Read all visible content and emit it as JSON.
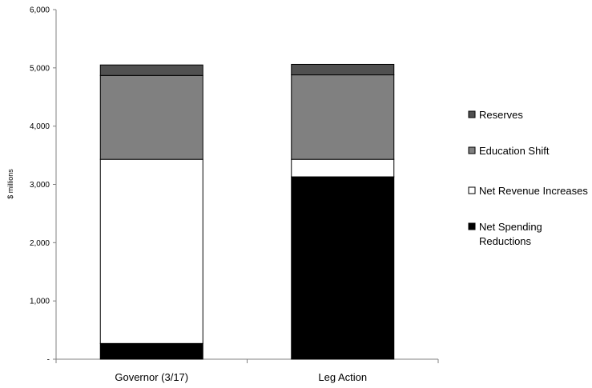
{
  "chart_data": {
    "type": "bar",
    "stacked": true,
    "categories": [
      "Governor (3/17)",
      "Leg Action"
    ],
    "series": [
      {
        "name": "Net Spending Reductions",
        "values": [
          270,
          3130
        ],
        "color": "#000000"
      },
      {
        "name": "Net Revenue Increases",
        "values": [
          3160,
          300
        ],
        "color": "#ffffff"
      },
      {
        "name": "Education Shift",
        "values": [
          1440,
          1450
        ],
        "color": "#808080"
      },
      {
        "name": "Reserves",
        "values": [
          180,
          180
        ],
        "color": "#505050"
      }
    ],
    "legend_order": [
      "Reserves",
      "Education Shift",
      "Net Revenue Increases",
      "Net Spending Reductions"
    ],
    "legend_display": [
      [
        "Reserves"
      ],
      [
        "Education Shift"
      ],
      [
        "Net Revenue Increases"
      ],
      [
        "Net Spending",
        "Reductions"
      ]
    ],
    "ylabel": "$ millions",
    "ylim": [
      0,
      6000
    ],
    "yticks": [
      0,
      1000,
      2000,
      3000,
      4000,
      5000,
      6000
    ],
    "ytick_labels": [
      "-",
      "1,000",
      "2,000",
      "3,000",
      "4,000",
      "5,000",
      "6,000"
    ],
    "grid": false,
    "legend_position": "right"
  }
}
